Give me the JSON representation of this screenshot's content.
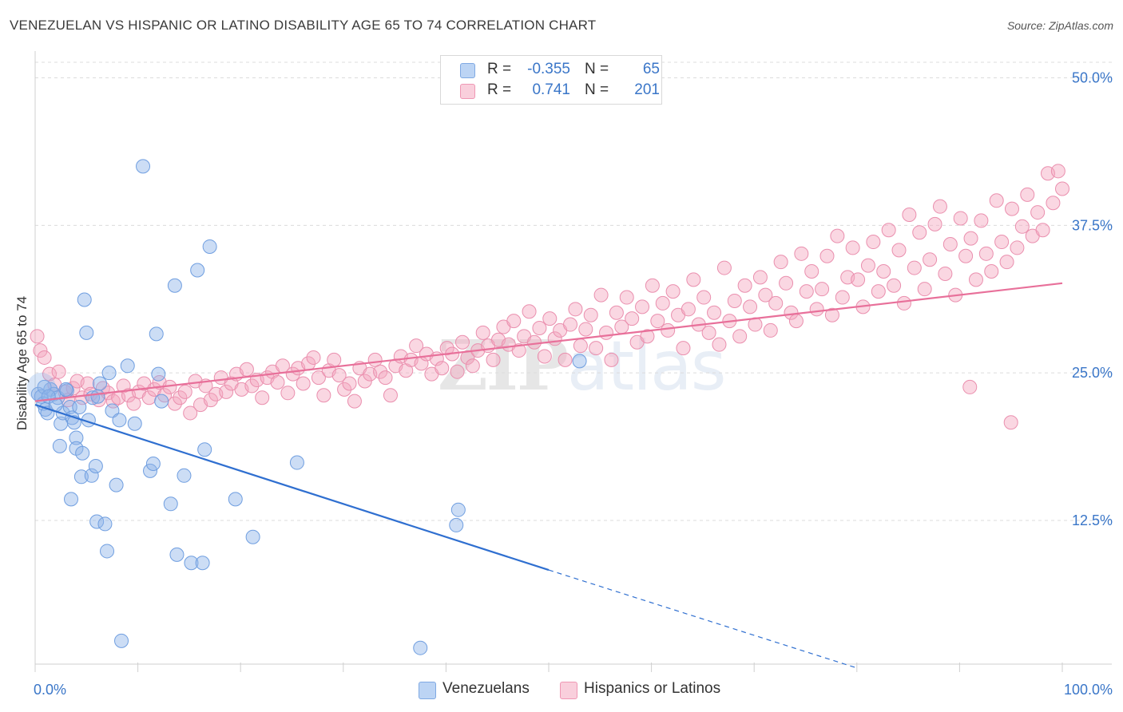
{
  "chart_data": {
    "type": "scatter",
    "title": "VENEZUELAN VS HISPANIC OR LATINO DISABILITY AGE 65 TO 74 CORRELATION CHART",
    "source": "Source: ZipAtlas.com",
    "ylabel": "Disability Age 65 to 74",
    "xlabel": "",
    "xlim": [
      0,
      100
    ],
    "ylim": [
      0,
      52
    ],
    "x_tick_labels": [
      "0.0%",
      "100.0%"
    ],
    "y_ticks": [
      12.5,
      25.0,
      37.5,
      50.0
    ],
    "y_tick_labels": [
      "12.5%",
      "25.0%",
      "37.5%",
      "50.0%"
    ],
    "grid": "horizontal dashed",
    "legend_position": "top-center",
    "watermark": "ZIPatlas",
    "colors": {
      "venezuelans": "#8fb4e8",
      "venezuelans_line": "#2f6fd0",
      "hispanics": "#f4a7bf",
      "hispanics_line": "#e8709a",
      "value_text": "#3a76c8"
    },
    "legend_stats": [
      {
        "series": "Venezuelans",
        "r_label": "R =",
        "r": "-0.355",
        "n_label": "N =",
        "n": "65"
      },
      {
        "series": "Hispanics or Latinos",
        "r_label": "R =",
        "r": "0.741",
        "n_label": "N =",
        "n": "201"
      }
    ],
    "series": [
      {
        "name": "Venezuelans",
        "trend": {
          "x0": 0,
          "y0": 22.3,
          "x1": 50,
          "y1": 8.3,
          "dashed_to_x": 80,
          "dashed_to_y": 0
        },
        "points": [
          [
            0.3,
            23.2
          ],
          [
            0.6,
            23.0
          ],
          [
            0.8,
            22.4
          ],
          [
            1.0,
            21.9
          ],
          [
            1.2,
            21.6
          ],
          [
            1.5,
            23.6
          ],
          [
            1.8,
            23.2
          ],
          [
            2.2,
            22.9
          ],
          [
            2.5,
            20.7
          ],
          [
            2.4,
            18.8
          ],
          [
            2.7,
            21.6
          ],
          [
            3.1,
            23.5
          ],
          [
            3.4,
            22.1
          ],
          [
            3.6,
            21.2
          ],
          [
            3.5,
            14.3
          ],
          [
            3.8,
            20.8
          ],
          [
            4.0,
            19.5
          ],
          [
            4.0,
            18.6
          ],
          [
            4.3,
            22.1
          ],
          [
            4.5,
            16.2
          ],
          [
            4.6,
            18.2
          ],
          [
            4.8,
            31.2
          ],
          [
            5.0,
            28.4
          ],
          [
            5.2,
            21.0
          ],
          [
            5.5,
            16.3
          ],
          [
            5.6,
            22.9
          ],
          [
            5.9,
            17.1
          ],
          [
            6.0,
            12.4
          ],
          [
            6.3,
            24.1
          ],
          [
            6.8,
            12.2
          ],
          [
            7.0,
            9.9
          ],
          [
            7.2,
            25.0
          ],
          [
            7.5,
            21.8
          ],
          [
            7.9,
            15.5
          ],
          [
            8.2,
            21.0
          ],
          [
            8.4,
            2.3
          ],
          [
            9.0,
            25.6
          ],
          [
            9.7,
            20.7
          ],
          [
            10.5,
            42.5
          ],
          [
            11.2,
            16.7
          ],
          [
            11.5,
            17.3
          ],
          [
            11.8,
            28.3
          ],
          [
            12.0,
            24.9
          ],
          [
            12.3,
            22.6
          ],
          [
            13.2,
            13.9
          ],
          [
            13.6,
            32.4
          ],
          [
            13.8,
            9.6
          ],
          [
            14.5,
            16.3
          ],
          [
            15.2,
            8.9
          ],
          [
            15.8,
            33.7
          ],
          [
            16.3,
            8.9
          ],
          [
            16.5,
            18.5
          ],
          [
            17.0,
            35.7
          ],
          [
            19.5,
            14.3
          ],
          [
            21.2,
            11.1
          ],
          [
            25.5,
            17.4
          ],
          [
            37.5,
            1.7
          ],
          [
            41.0,
            12.1
          ],
          [
            41.2,
            13.4
          ],
          [
            53.0,
            26.0
          ],
          [
            0.9,
            23.8
          ],
          [
            1.3,
            23.0
          ],
          [
            2.0,
            22.3
          ],
          [
            3.0,
            23.6
          ],
          [
            6.1,
            23.0
          ]
        ]
      },
      {
        "name": "Hispanics or Latinos",
        "trend": {
          "x0": 0,
          "y0": 22.6,
          "x1": 100,
          "y1": 32.6
        },
        "points": [
          [
            0.2,
            28.1
          ],
          [
            0.5,
            26.9
          ],
          [
            0.9,
            26.3
          ],
          [
            1.4,
            24.9
          ],
          [
            1.9,
            24.0
          ],
          [
            2.3,
            25.1
          ],
          [
            2.9,
            23.4
          ],
          [
            3.2,
            22.7
          ],
          [
            3.7,
            23.7
          ],
          [
            4.1,
            24.3
          ],
          [
            4.6,
            22.9
          ],
          [
            5.1,
            24.1
          ],
          [
            5.4,
            23.2
          ],
          [
            6.2,
            22.7
          ],
          [
            6.6,
            23.7
          ],
          [
            7.1,
            23.3
          ],
          [
            7.6,
            22.6
          ],
          [
            8.1,
            22.9
          ],
          [
            8.6,
            23.9
          ],
          [
            9.1,
            23.1
          ],
          [
            9.6,
            22.4
          ],
          [
            10.1,
            23.4
          ],
          [
            10.6,
            24.1
          ],
          [
            11.1,
            22.9
          ],
          [
            11.6,
            23.6
          ],
          [
            12.1,
            24.2
          ],
          [
            12.6,
            23.1
          ],
          [
            13.1,
            23.8
          ],
          [
            13.6,
            22.4
          ],
          [
            14.1,
            22.9
          ],
          [
            14.6,
            23.4
          ],
          [
            15.1,
            21.6
          ],
          [
            15.6,
            24.3
          ],
          [
            16.1,
            22.3
          ],
          [
            16.6,
            23.9
          ],
          [
            17.1,
            22.7
          ],
          [
            17.6,
            23.2
          ],
          [
            18.1,
            24.6
          ],
          [
            18.6,
            23.4
          ],
          [
            19.1,
            24.1
          ],
          [
            19.6,
            24.9
          ],
          [
            20.1,
            23.6
          ],
          [
            20.6,
            25.3
          ],
          [
            21.1,
            23.9
          ],
          [
            21.6,
            24.4
          ],
          [
            22.1,
            22.9
          ],
          [
            22.6,
            24.6
          ],
          [
            23.1,
            25.1
          ],
          [
            23.6,
            24.2
          ],
          [
            24.1,
            25.6
          ],
          [
            24.6,
            23.3
          ],
          [
            25.1,
            24.9
          ],
          [
            25.6,
            25.4
          ],
          [
            26.1,
            24.1
          ],
          [
            26.6,
            25.8
          ],
          [
            27.1,
            26.3
          ],
          [
            27.6,
            24.6
          ],
          [
            28.1,
            23.1
          ],
          [
            28.6,
            25.2
          ],
          [
            29.1,
            26.1
          ],
          [
            29.6,
            24.8
          ],
          [
            30.1,
            23.6
          ],
          [
            30.6,
            24.1
          ],
          [
            31.1,
            22.6
          ],
          [
            31.6,
            25.4
          ],
          [
            32.1,
            24.3
          ],
          [
            32.6,
            24.9
          ],
          [
            33.1,
            26.1
          ],
          [
            33.6,
            25.1
          ],
          [
            34.1,
            24.6
          ],
          [
            34.6,
            23.1
          ],
          [
            35.1,
            25.6
          ],
          [
            35.6,
            26.4
          ],
          [
            36.1,
            25.2
          ],
          [
            36.6,
            26.1
          ],
          [
            37.1,
            27.3
          ],
          [
            37.6,
            25.8
          ],
          [
            38.1,
            26.6
          ],
          [
            38.6,
            24.9
          ],
          [
            39.1,
            26.2
          ],
          [
            39.6,
            25.4
          ],
          [
            40.1,
            27.1
          ],
          [
            40.6,
            26.6
          ],
          [
            41.1,
            25.1
          ],
          [
            41.6,
            27.6
          ],
          [
            42.1,
            26.3
          ],
          [
            42.6,
            25.6
          ],
          [
            43.1,
            26.9
          ],
          [
            43.6,
            28.4
          ],
          [
            44.1,
            27.3
          ],
          [
            44.6,
            26.1
          ],
          [
            45.1,
            27.8
          ],
          [
            45.6,
            28.9
          ],
          [
            46.1,
            27.4
          ],
          [
            46.6,
            29.4
          ],
          [
            47.1,
            26.9
          ],
          [
            47.6,
            28.1
          ],
          [
            48.1,
            30.2
          ],
          [
            48.6,
            27.6
          ],
          [
            49.1,
            28.8
          ],
          [
            49.6,
            26.4
          ],
          [
            50.1,
            29.6
          ],
          [
            50.6,
            27.9
          ],
          [
            51.1,
            28.6
          ],
          [
            51.6,
            26.1
          ],
          [
            52.1,
            29.1
          ],
          [
            52.6,
            30.4
          ],
          [
            53.1,
            27.3
          ],
          [
            53.6,
            28.7
          ],
          [
            54.1,
            29.9
          ],
          [
            54.6,
            27.1
          ],
          [
            55.1,
            31.6
          ],
          [
            55.6,
            28.4
          ],
          [
            56.1,
            26.1
          ],
          [
            56.6,
            30.1
          ],
          [
            57.1,
            28.9
          ],
          [
            57.6,
            31.4
          ],
          [
            58.1,
            29.6
          ],
          [
            58.6,
            27.6
          ],
          [
            59.1,
            30.6
          ],
          [
            59.6,
            28.1
          ],
          [
            60.1,
            32.4
          ],
          [
            60.6,
            29.4
          ],
          [
            61.1,
            30.9
          ],
          [
            61.6,
            28.6
          ],
          [
            62.1,
            31.9
          ],
          [
            62.6,
            29.9
          ],
          [
            63.1,
            27.1
          ],
          [
            63.6,
            30.4
          ],
          [
            64.1,
            32.9
          ],
          [
            64.6,
            29.1
          ],
          [
            65.1,
            31.4
          ],
          [
            65.6,
            28.4
          ],
          [
            66.1,
            30.1
          ],
          [
            66.6,
            27.4
          ],
          [
            67.1,
            33.9
          ],
          [
            67.6,
            29.4
          ],
          [
            68.1,
            31.1
          ],
          [
            68.6,
            28.1
          ],
          [
            69.1,
            32.4
          ],
          [
            69.6,
            30.6
          ],
          [
            70.1,
            29.1
          ],
          [
            70.6,
            33.1
          ],
          [
            71.1,
            31.6
          ],
          [
            71.6,
            28.6
          ],
          [
            72.1,
            30.9
          ],
          [
            72.6,
            34.4
          ],
          [
            73.1,
            32.6
          ],
          [
            73.6,
            30.1
          ],
          [
            74.1,
            29.4
          ],
          [
            74.6,
            35.1
          ],
          [
            75.1,
            31.9
          ],
          [
            75.6,
            33.6
          ],
          [
            76.1,
            30.4
          ],
          [
            76.6,
            32.1
          ],
          [
            77.1,
            34.9
          ],
          [
            77.6,
            29.9
          ],
          [
            78.1,
            36.6
          ],
          [
            78.6,
            31.4
          ],
          [
            79.1,
            33.1
          ],
          [
            79.6,
            35.6
          ],
          [
            80.1,
            32.9
          ],
          [
            80.6,
            30.6
          ],
          [
            81.1,
            34.1
          ],
          [
            81.6,
            36.1
          ],
          [
            82.1,
            31.9
          ],
          [
            82.6,
            33.6
          ],
          [
            83.1,
            37.1
          ],
          [
            83.6,
            32.4
          ],
          [
            84.1,
            35.4
          ],
          [
            84.6,
            30.9
          ],
          [
            85.1,
            38.4
          ],
          [
            85.6,
            33.9
          ],
          [
            86.1,
            36.9
          ],
          [
            86.6,
            32.1
          ],
          [
            87.1,
            34.6
          ],
          [
            87.6,
            37.6
          ],
          [
            88.1,
            39.1
          ],
          [
            88.6,
            33.4
          ],
          [
            89.1,
            35.9
          ],
          [
            89.6,
            31.6
          ],
          [
            90.1,
            38.1
          ],
          [
            90.6,
            34.9
          ],
          [
            91.1,
            36.4
          ],
          [
            91.6,
            32.9
          ],
          [
            92.1,
            37.9
          ],
          [
            92.6,
            35.1
          ],
          [
            93.1,
            33.6
          ],
          [
            93.6,
            39.6
          ],
          [
            94.1,
            36.1
          ],
          [
            94.6,
            34.4
          ],
          [
            95.1,
            38.9
          ],
          [
            95.6,
            35.6
          ],
          [
            96.1,
            37.4
          ],
          [
            96.6,
            40.1
          ],
          [
            97.1,
            36.6
          ],
          [
            97.6,
            38.6
          ],
          [
            98.1,
            37.1
          ],
          [
            98.6,
            41.9
          ],
          [
            99.1,
            39.4
          ],
          [
            99.6,
            42.1
          ],
          [
            100.0,
            40.6
          ],
          [
            95.0,
            20.8
          ],
          [
            91.0,
            23.8
          ]
        ]
      }
    ]
  }
}
